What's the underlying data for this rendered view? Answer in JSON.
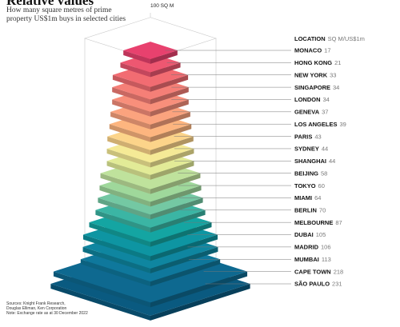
{
  "header": {
    "title": "Relative values",
    "subtitle": "How many square metres of prime property US$1m buys in selected cities"
  },
  "reference_label": "100 SQ M",
  "legend": {
    "location_label": "LOCATION",
    "unit_label": "SQ M/US$1m"
  },
  "sources": [
    "Sources: Knight Frank Research,",
    "Douglas Elliman, Ken Corporation",
    "Note: Exchange rate as at 30 December 2022"
  ],
  "chart_data": {
    "type": "bar",
    "title": "Relative values",
    "categories": [
      "MONACO",
      "HONG KONG",
      "NEW YORK",
      "SINGAPORE",
      "LONDON",
      "GENEVA",
      "LOS ANGELES",
      "PARIS",
      "SYDNEY",
      "SHANGHAI",
      "BEIJING",
      "TOKYO",
      "MIAMI",
      "BERLIN",
      "MELBOURNE",
      "DUBAI",
      "MADRID",
      "MUMBAI",
      "CAPE TOWN",
      "SÃO PAULO"
    ],
    "series": [
      {
        "values": [
          17,
          21,
          33,
          34,
          34,
          37,
          39,
          43,
          44,
          44,
          58,
          60,
          64,
          70,
          87,
          105,
          106,
          113,
          218,
          231
        ]
      }
    ],
    "reference_value": 100,
    "colors": [
      "#e8416e",
      "#ee5771",
      "#f26c72",
      "#f57f77",
      "#f88f7b",
      "#fba37e",
      "#fdb57f",
      "#fcd48a",
      "#f5ea96",
      "#e2eb97",
      "#bfe29c",
      "#9fd89b",
      "#74c8a3",
      "#3bb5a4",
      "#14a5a2",
      "#0e95a2",
      "#0f86a0",
      "#0f789c",
      "#0e6990",
      "#0a5a80"
    ],
    "label_colors": {
      "city": "#111111",
      "value": "#777777"
    }
  }
}
